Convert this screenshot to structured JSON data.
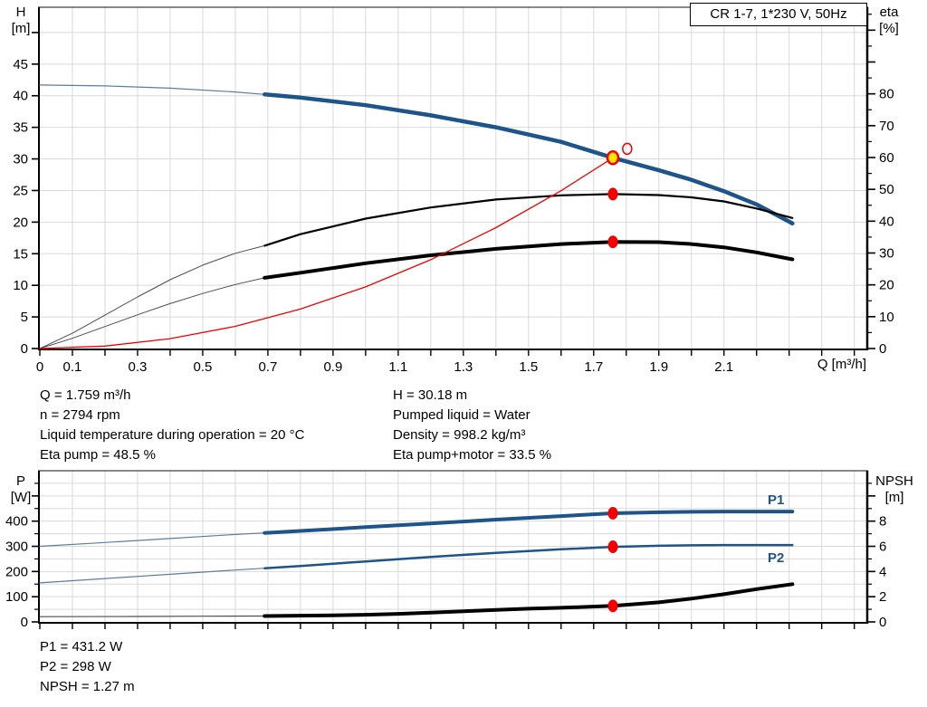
{
  "title_box": {
    "text": "CR 1-7, 1*230 V, 50Hz"
  },
  "colors": {
    "curve_blue": "#1d5489",
    "thin_blue": "#5d7ca0",
    "curve_black": "#000000",
    "thin_black": "#4d4d4d",
    "red": "#f50000",
    "yellow": "#ffe500",
    "grid": "#d9d9d9",
    "axis": "#000000",
    "label_blue": "#1d5489"
  },
  "info_panel_top": {
    "left": [
      "Q = 1.759 m³/h",
      "n = 2794 rpm",
      "Liquid temperature during operation = 20 °C",
      "Eta pump = 48.5 %"
    ],
    "right": [
      "H = 30.18 m",
      "Pumped liquid = Water",
      "Density = 998.2 kg/m³",
      "Eta pump+motor = 33.5 %"
    ]
  },
  "info_panel_bottom": [
    "P1 = 431.2 W",
    "P2 = 298 W",
    "NPSH = 1.27 m"
  ],
  "chart_data": [
    {
      "type": "line",
      "title": "CR 1-7, 1*230 V, 50Hz",
      "x_axis": {
        "label": "Q [m³/h]",
        "range": [
          0,
          2.537
        ],
        "tick_step": 0.1,
        "labeled_ticks": [
          [
            0,
            "0"
          ],
          [
            0.1,
            "0.1"
          ],
          [
            0.3,
            "0.3"
          ],
          [
            0.5,
            "0.5"
          ],
          [
            0.7,
            "0.7"
          ],
          [
            0.9,
            "0.9"
          ],
          [
            1.1,
            "1.1"
          ],
          [
            1.3,
            "1.3"
          ],
          [
            1.5,
            "1.5"
          ],
          [
            1.7,
            "1.7"
          ],
          [
            1.9,
            "1.9"
          ],
          [
            2.1,
            "2.1"
          ]
        ]
      },
      "y_left": {
        "label_line1": "H",
        "label_line2": "[m]",
        "range": [
          0,
          54
        ],
        "grid_step": 5,
        "ticks": [
          [
            0,
            "0"
          ],
          [
            5,
            "5"
          ],
          [
            10,
            "10"
          ],
          [
            15,
            "15"
          ],
          [
            20,
            "20"
          ],
          [
            25,
            "25"
          ],
          [
            30,
            "30"
          ],
          [
            35,
            "35"
          ],
          [
            40,
            "40"
          ],
          [
            45,
            "45"
          ],
          [
            50,
            ""
          ]
        ]
      },
      "y_right": {
        "label_line1": "eta",
        "label_line2": "[%]",
        "range": [
          0,
          107.2
        ],
        "ticks": [
          [
            0,
            "0"
          ],
          [
            10,
            "10"
          ],
          [
            20,
            "20"
          ],
          [
            30,
            "30"
          ],
          [
            40,
            "40"
          ],
          [
            50,
            "50"
          ],
          [
            60,
            "60"
          ],
          [
            70,
            "70"
          ],
          [
            80,
            "80"
          ],
          [
            90,
            ""
          ],
          [
            100,
            ""
          ]
        ],
        "minor_ticks": [
          5,
          15,
          25,
          35,
          45,
          55,
          65,
          75,
          85,
          95,
          105
        ]
      },
      "series": [
        {
          "name": "head-curve-thin",
          "axis": "left",
          "color": "thin_blue",
          "width": 1.2,
          "points": [
            [
              0,
              41.7
            ],
            [
              0.2,
              41.55
            ],
            [
              0.4,
              41.2
            ],
            [
              0.6,
              40.6
            ],
            [
              0.69,
              40.2
            ]
          ]
        },
        {
          "name": "head-curve",
          "axis": "left",
          "color": "curve_blue",
          "width": 4.5,
          "points": [
            [
              0.69,
              40.2
            ],
            [
              0.8,
              39.7
            ],
            [
              1.0,
              38.5
            ],
            [
              1.2,
              36.9
            ],
            [
              1.4,
              35.0
            ],
            [
              1.6,
              32.7
            ],
            [
              1.759,
              30.18
            ],
            [
              1.9,
              28.2
            ],
            [
              2.0,
              26.7
            ],
            [
              2.1,
              24.9
            ],
            [
              2.2,
              22.8
            ],
            [
              2.31,
              19.8
            ]
          ]
        },
        {
          "name": "eta-pump-curve-thin",
          "axis": "right",
          "color": "thin_black",
          "width": 1,
          "points": [
            [
              0,
              0
            ],
            [
              0.1,
              4.8
            ],
            [
              0.2,
              10.5
            ],
            [
              0.3,
              16.2
            ],
            [
              0.4,
              21.6
            ],
            [
              0.5,
              26.2
            ],
            [
              0.6,
              29.9
            ],
            [
              0.69,
              32.3
            ]
          ]
        },
        {
          "name": "eta-pump-curve",
          "axis": "right",
          "color": "curve_black",
          "width": 2.2,
          "points": [
            [
              0.69,
              32.3
            ],
            [
              0.8,
              35.9
            ],
            [
              1.0,
              40.8
            ],
            [
              1.2,
              44.3
            ],
            [
              1.4,
              46.8
            ],
            [
              1.6,
              48.1
            ],
            [
              1.759,
              48.5
            ],
            [
              1.9,
              48.2
            ],
            [
              2.0,
              47.5
            ],
            [
              2.1,
              46.2
            ],
            [
              2.2,
              44.0
            ],
            [
              2.31,
              41.0
            ]
          ]
        },
        {
          "name": "eta-pump-motor-curve-thin",
          "axis": "right",
          "color": "thin_black",
          "width": 1,
          "points": [
            [
              0,
              0
            ],
            [
              0.1,
              3.2
            ],
            [
              0.2,
              6.9
            ],
            [
              0.3,
              10.6
            ],
            [
              0.4,
              14.1
            ],
            [
              0.5,
              17.3
            ],
            [
              0.6,
              20.1
            ],
            [
              0.69,
              22.2
            ]
          ]
        },
        {
          "name": "eta-pump-motor-curve",
          "axis": "right",
          "color": "curve_black",
          "width": 4,
          "points": [
            [
              0.69,
              22.2
            ],
            [
              0.8,
              23.8
            ],
            [
              1.0,
              26.8
            ],
            [
              1.2,
              29.3
            ],
            [
              1.4,
              31.3
            ],
            [
              1.6,
              32.8
            ],
            [
              1.759,
              33.5
            ],
            [
              1.9,
              33.4
            ],
            [
              2.0,
              32.8
            ],
            [
              2.1,
              31.8
            ],
            [
              2.2,
              30.2
            ],
            [
              2.31,
              28.0
            ]
          ]
        },
        {
          "name": "system-curve",
          "axis": "left",
          "color": "red",
          "width": 1.3,
          "points": [
            [
              0,
              0
            ],
            [
              0.2,
              0.39
            ],
            [
              0.4,
              1.56
            ],
            [
              0.6,
              3.51
            ],
            [
              0.8,
              6.24
            ],
            [
              1.0,
              9.75
            ],
            [
              1.2,
              14.05
            ],
            [
              1.4,
              19.12
            ],
            [
              1.6,
              24.97
            ],
            [
              1.759,
              30.18
            ]
          ]
        }
      ],
      "markers": [
        {
          "name": "rated-duty-point",
          "axis": "left",
          "x": 1.803,
          "y": 31.6,
          "rx": 5,
          "ry": 6,
          "fill": "none",
          "stroke": "red",
          "stroke_width": 1.5,
          "interactable": false
        },
        {
          "name": "duty-point",
          "axis": "left",
          "x": 1.759,
          "y": 30.18,
          "rx": 6,
          "ry": 7,
          "fill": "yellow",
          "stroke": "red",
          "stroke_width": 2.5,
          "interactable": true
        },
        {
          "name": "eta-pump-point",
          "axis": "right",
          "x": 1.759,
          "y": 48.5,
          "rx": 5.5,
          "ry": 7,
          "fill": "red",
          "interactable": false
        },
        {
          "name": "eta-pump-motor-point",
          "axis": "right",
          "x": 1.759,
          "y": 33.5,
          "rx": 5.5,
          "ry": 7,
          "fill": "red",
          "interactable": false
        }
      ]
    },
    {
      "type": "line",
      "title": "Power and NPSH curves",
      "x_axis": {
        "label": "",
        "range": [
          0,
          2.537
        ],
        "tick_step": 0.1,
        "labeled_ticks": []
      },
      "y_left": {
        "label_line1": "P",
        "label_line2": "[W]",
        "range": [
          0,
          600
        ],
        "grid_step": 50,
        "ticks": [
          [
            0,
            "0"
          ],
          [
            100,
            "100"
          ],
          [
            200,
            "200"
          ],
          [
            300,
            "300"
          ],
          [
            400,
            "400"
          ],
          [
            500,
            ""
          ]
        ],
        "minor_ticks": [
          50,
          150,
          250,
          350,
          450,
          550
        ]
      },
      "y_right": {
        "label_line1": "NPSH",
        "label_line2": "[m]",
        "range": [
          0,
          12
        ],
        "ticks": [
          [
            0,
            "0"
          ],
          [
            2,
            "2"
          ],
          [
            4,
            "4"
          ],
          [
            6,
            "6"
          ],
          [
            8,
            "8"
          ],
          [
            10,
            ""
          ]
        ],
        "minor_ticks": [
          1,
          3,
          5,
          7,
          9,
          11
        ]
      },
      "series": [
        {
          "name": "p1-curve-thin",
          "axis": "left",
          "color": "thin_blue",
          "width": 1.2,
          "points": [
            [
              0,
              300
            ],
            [
              0.2,
              315
            ],
            [
              0.4,
              331
            ],
            [
              0.6,
              347
            ],
            [
              0.69,
              353
            ]
          ]
        },
        {
          "name": "p1-curve",
          "axis": "left",
          "color": "curve_blue",
          "width": 4,
          "points": [
            [
              0.69,
              353
            ],
            [
              0.8,
              361
            ],
            [
              1.0,
              376
            ],
            [
              1.2,
              391
            ],
            [
              1.4,
              406
            ],
            [
              1.6,
              420
            ],
            [
              1.759,
              431.2
            ],
            [
              1.9,
              435
            ],
            [
              2.0,
              437
            ],
            [
              2.1,
              438
            ],
            [
              2.2,
              438
            ],
            [
              2.31,
              438
            ]
          ]
        },
        {
          "name": "p2-curve-thin",
          "axis": "left",
          "color": "thin_blue",
          "width": 1.2,
          "points": [
            [
              0,
              155
            ],
            [
              0.2,
              172
            ],
            [
              0.4,
              189
            ],
            [
              0.6,
              206
            ],
            [
              0.69,
              213
            ]
          ]
        },
        {
          "name": "p2-curve",
          "axis": "left",
          "color": "curve_blue",
          "width": 2.5,
          "points": [
            [
              0.69,
              213
            ],
            [
              0.8,
              222
            ],
            [
              1.0,
              240
            ],
            [
              1.2,
              258
            ],
            [
              1.4,
              274
            ],
            [
              1.6,
              288
            ],
            [
              1.759,
              298
            ],
            [
              1.9,
              302
            ],
            [
              2.0,
              304
            ],
            [
              2.1,
              305
            ],
            [
              2.2,
              305
            ],
            [
              2.31,
              305
            ]
          ]
        },
        {
          "name": "npsh-curve-thin",
          "axis": "right",
          "color": "thin_black",
          "width": 1.2,
          "points": [
            [
              0,
              0.42
            ],
            [
              0.3,
              0.43
            ],
            [
              0.5,
              0.45
            ],
            [
              0.69,
              0.47
            ]
          ]
        },
        {
          "name": "npsh-curve",
          "axis": "right",
          "color": "curve_black",
          "width": 4,
          "points": [
            [
              0.69,
              0.47
            ],
            [
              0.9,
              0.52
            ],
            [
              1.0,
              0.57
            ],
            [
              1.1,
              0.64
            ],
            [
              1.2,
              0.73
            ],
            [
              1.3,
              0.84
            ],
            [
              1.4,
              0.95
            ],
            [
              1.5,
              1.05
            ],
            [
              1.6,
              1.12
            ],
            [
              1.759,
              1.27
            ],
            [
              1.9,
              1.55
            ],
            [
              2.0,
              1.85
            ],
            [
              2.1,
              2.2
            ],
            [
              2.2,
              2.6
            ],
            [
              2.31,
              3.0
            ]
          ]
        }
      ],
      "markers": [
        {
          "name": "p1-point",
          "axis": "left",
          "x": 1.759,
          "y": 431.2,
          "rx": 5.5,
          "ry": 7,
          "fill": "red",
          "interactable": false
        },
        {
          "name": "p2-point",
          "axis": "left",
          "x": 1.759,
          "y": 298,
          "rx": 5.5,
          "ry": 7,
          "fill": "red",
          "interactable": false
        },
        {
          "name": "npsh-point",
          "axis": "right",
          "x": 1.759,
          "y": 1.27,
          "rx": 5.5,
          "ry": 7,
          "fill": "red",
          "interactable": false
        }
      ],
      "series_labels": [
        {
          "name": "p1-label",
          "text": "P1"
        },
        {
          "name": "p2-label",
          "text": "P2"
        }
      ]
    }
  ]
}
